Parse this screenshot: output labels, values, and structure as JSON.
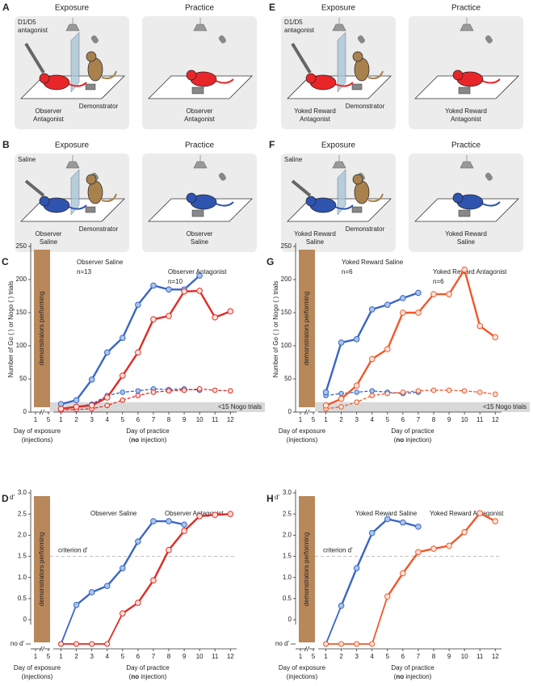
{
  "illustrations": [
    {
      "letter": "A",
      "color": "#e8262a",
      "exposure": {
        "title": "Exposure",
        "drug": [
          "D1/D5",
          "antagonist"
        ],
        "observer": [
          "Observer",
          "Antagonist"
        ],
        "demonstrator": "Demonstrator"
      },
      "practice": {
        "title": "Practice",
        "observer": [
          "Observer",
          "Antagonist"
        ]
      }
    },
    {
      "letter": "B",
      "color": "#2f54b0",
      "exposure": {
        "title": "Exposure",
        "drug": [
          "Saline"
        ],
        "observer": [
          "Observer",
          "Saline"
        ],
        "demonstrator": "Demonstrator"
      },
      "practice": {
        "title": "Practice",
        "observer": [
          "Observer",
          "Saline"
        ]
      }
    },
    {
      "letter": "E",
      "color": "#e8262a",
      "exposure": {
        "title": "Exposure",
        "drug": [
          "D1/D5",
          "antagonist"
        ],
        "observer": [
          "Yoked Reward",
          "Antagonist"
        ],
        "demonstrator": "Demonstrator"
      },
      "practice": {
        "title": "Practice",
        "observer": [
          "Yoked Reward",
          "Antagonist"
        ]
      }
    },
    {
      "letter": "F",
      "color": "#2f54b0",
      "exposure": {
        "title": "Exposure",
        "drug": [
          "Saline"
        ],
        "observer": [
          "Yoked Reward",
          "Saline"
        ],
        "demonstrator": "Demonstrator"
      },
      "practice": {
        "title": "Practice",
        "observer": [
          "Yoked Reward",
          "Saline"
        ]
      }
    }
  ],
  "chart_data": [
    {
      "type": "line",
      "measure": "count",
      "letter": "C",
      "ylabel": "Number of Go (   ) or Nogo (   ) trials",
      "bar_label": "demonstrators performing",
      "exposure_xticks": [
        1,
        5
      ],
      "xlabel_exposure": [
        "Day of exposure",
        "(injections)"
      ],
      "xlabel_practice": [
        "Day of practice",
        "(",
        "no",
        " injection)"
      ],
      "x": [
        1,
        2,
        3,
        4,
        5,
        6,
        7,
        8,
        9,
        10,
        11,
        12
      ],
      "xticks": [
        1,
        2,
        3,
        4,
        5,
        6,
        7,
        8,
        9,
        10,
        11,
        12
      ],
      "xlim": [
        0.5,
        12.3
      ],
      "ylim": [
        0,
        250
      ],
      "yticks": [
        0,
        50,
        100,
        150,
        200,
        250
      ],
      "threshold": {
        "value": 15,
        "label": "<15 Nogo trials"
      },
      "series": [
        {
          "name": "Observer Saline",
          "n": "n=13",
          "color": "#3a66c4",
          "values": [
            12,
            18,
            49,
            90,
            112,
            162,
            191,
            185,
            185,
            206,
            null,
            null
          ],
          "nogo_values": [
            5,
            8,
            12,
            25,
            30,
            32,
            35,
            34,
            35,
            33,
            null,
            null
          ]
        },
        {
          "name": "Observer Antagonist",
          "n": "n=10",
          "color": "#e02a26",
          "values": [
            5,
            8,
            10,
            22,
            55,
            90,
            140,
            145,
            182,
            183,
            143,
            152
          ],
          "nogo_values": [
            3,
            4,
            5,
            10,
            18,
            25,
            30,
            32,
            33,
            35,
            33,
            32
          ]
        }
      ]
    },
    {
      "type": "line",
      "measure": "dprime",
      "letter": "D",
      "ylabel": "d'",
      "no_d_label": "no d'",
      "bar_label": "demonstrators performing",
      "exposure_xticks": [
        1,
        5
      ],
      "xlabel_exposure": [
        "Day of exposure",
        "(injections)"
      ],
      "xlabel_practice": [
        "Day of practice",
        "(",
        "no",
        " injection)"
      ],
      "x": [
        1,
        2,
        3,
        4,
        5,
        6,
        7,
        8,
        9,
        10,
        11,
        12
      ],
      "xticks": [
        1,
        2,
        3,
        4,
        5,
        6,
        7,
        8,
        9,
        10,
        11,
        12
      ],
      "xlim": [
        0.5,
        12.3
      ],
      "ylim": [
        0,
        3
      ],
      "yticks": [
        0,
        0.5,
        {
          "value": 1,
          "label": "1.0"
        },
        1.5,
        {
          "value": 2,
          "label": "2.0"
        },
        2.5,
        {
          "value": 3,
          "label": "3.0"
        }
      ],
      "criterion": {
        "value": 1.5,
        "label": "criterion d'"
      },
      "series": [
        {
          "name": "Observer Saline",
          "color": "#3a66c4",
          "values": [
            null,
            0.35,
            0.65,
            0.8,
            1.22,
            1.85,
            2.33,
            2.33,
            2.25,
            null,
            null,
            null
          ]
        },
        {
          "name": "Observer Antagonist",
          "color": "#e02a26",
          "values": [
            null,
            null,
            null,
            null,
            0.15,
            0.4,
            0.93,
            1.65,
            2.1,
            2.45,
            2.48,
            2.5
          ]
        }
      ]
    },
    {
      "type": "line",
      "measure": "count",
      "letter": "G",
      "ylabel": "Number of Go (   ) or Nogo (   ) trials",
      "bar_label": "demonstrators performing",
      "exposure_xticks": [
        1,
        5
      ],
      "xlabel_exposure": [
        "Day of exposure",
        "(injections)"
      ],
      "xlabel_practice": [
        "Day of practice",
        "(",
        "no",
        " injection)"
      ],
      "x": [
        1,
        2,
        3,
        4,
        5,
        6,
        7,
        8,
        9,
        10,
        11,
        12
      ],
      "xticks": [
        1,
        2,
        3,
        4,
        5,
        6,
        7,
        8,
        9,
        10,
        11,
        12
      ],
      "xlim": [
        0.5,
        12.3
      ],
      "ylim": [
        0,
        250
      ],
      "yticks": [
        0,
        50,
        100,
        150,
        200,
        250
      ],
      "threshold": {
        "value": 15,
        "label": "<15 Nogo trials"
      },
      "series": [
        {
          "name": "Yoked Reward Saline",
          "n": "n=6",
          "color": "#3a66c4",
          "values": [
            30,
            105,
            110,
            155,
            162,
            172,
            180,
            null,
            null,
            null,
            null,
            null
          ],
          "nogo_values": [
            25,
            28,
            30,
            32,
            30,
            28,
            30,
            null,
            null,
            null,
            null,
            null
          ]
        },
        {
          "name": "Yoked Reward Antagonist",
          "n": "n=6",
          "color": "#f0582a",
          "values": [
            10,
            20,
            40,
            80,
            95,
            150,
            150,
            178,
            178,
            215,
            130,
            113
          ],
          "nogo_values": [
            5,
            8,
            15,
            25,
            28,
            30,
            32,
            33,
            33,
            32,
            30,
            27
          ]
        }
      ]
    },
    {
      "type": "line",
      "measure": "dprime",
      "letter": "H",
      "ylabel": "d'",
      "no_d_label": "no d'",
      "bar_label": "demonstrators performing",
      "exposure_xticks": [
        1,
        5
      ],
      "xlabel_exposure": [
        "Day of exposure",
        "(injections)"
      ],
      "xlabel_practice": [
        "Day of practice",
        "(",
        "no",
        " injection)"
      ],
      "x": [
        1,
        2,
        3,
        4,
        5,
        6,
        7,
        8,
        9,
        10,
        11,
        12
      ],
      "xticks": [
        1,
        2,
        3,
        4,
        5,
        6,
        7,
        8,
        9,
        10,
        11,
        12
      ],
      "xlim": [
        0.5,
        12.3
      ],
      "ylim": [
        0,
        3
      ],
      "yticks": [
        0,
        0.5,
        {
          "value": 1,
          "label": "1.0"
        },
        1.5,
        {
          "value": 2,
          "label": "2.0"
        },
        2.5,
        {
          "value": 3,
          "label": "3.0"
        }
      ],
      "criterion": {
        "value": 1.5,
        "label": "criterion d'"
      },
      "series": [
        {
          "name": "Yoked Reward Saline",
          "color": "#3a66c4",
          "values": [
            null,
            0.33,
            1.22,
            2.05,
            2.38,
            2.3,
            2.2,
            null,
            null,
            null,
            null,
            null
          ]
        },
        {
          "name": "Yoked Reward Antagonist",
          "color": "#f0582a",
          "values": [
            null,
            null,
            null,
            null,
            0.55,
            1.1,
            1.6,
            1.68,
            1.75,
            2.07,
            2.52,
            2.33
          ]
        }
      ]
    }
  ]
}
